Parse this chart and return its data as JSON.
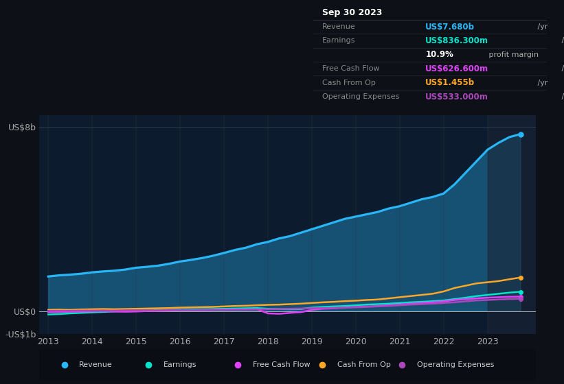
{
  "bg_color": "#0d1117",
  "plot_bg_color": "#0d1b2e",
  "grid_color": "#2a3a4a",
  "title_date": "Sep 30 2023",
  "info_box": {
    "Revenue": {
      "value": "US$7.680b",
      "color": "#4fc3f7"
    },
    "Earnings": {
      "value": "US$836.300m",
      "color": "#00e5cc"
    },
    "profit_margin": {
      "value": "10.9%",
      "color": "#ffffff"
    },
    "Free Cash Flow": {
      "value": "US$626.600m",
      "color": "#e040fb"
    },
    "Cash From Op": {
      "value": "US$1.455b",
      "color": "#ffa726"
    },
    "Operating Expenses": {
      "value": "US$533.000m",
      "color": "#ab47bc"
    }
  },
  "ylim": [
    -1.0,
    8.5
  ],
  "yticks": [
    -1.0,
    0.0,
    8.0
  ],
  "ytick_labels": [
    "-US$1b",
    "US$0",
    "US$8b"
  ],
  "years": [
    2013.0,
    2013.25,
    2013.5,
    2013.75,
    2014.0,
    2014.25,
    2014.5,
    2014.75,
    2015.0,
    2015.25,
    2015.5,
    2015.75,
    2016.0,
    2016.25,
    2016.5,
    2016.75,
    2017.0,
    2017.25,
    2017.5,
    2017.75,
    2018.0,
    2018.25,
    2018.5,
    2018.75,
    2019.0,
    2019.25,
    2019.5,
    2019.75,
    2020.0,
    2020.25,
    2020.5,
    2020.75,
    2021.0,
    2021.25,
    2021.5,
    2021.75,
    2022.0,
    2022.25,
    2022.5,
    2022.75,
    2023.0,
    2023.25,
    2023.5,
    2023.75
  ],
  "revenue": [
    1.5,
    1.55,
    1.58,
    1.62,
    1.68,
    1.72,
    1.75,
    1.8,
    1.88,
    1.92,
    1.97,
    2.05,
    2.15,
    2.22,
    2.3,
    2.4,
    2.52,
    2.65,
    2.75,
    2.9,
    3.0,
    3.15,
    3.25,
    3.4,
    3.55,
    3.7,
    3.85,
    4.0,
    4.1,
    4.2,
    4.3,
    4.45,
    4.55,
    4.7,
    4.85,
    4.95,
    5.1,
    5.5,
    6.0,
    6.5,
    7.0,
    7.3,
    7.55,
    7.68
  ],
  "earnings": [
    -0.15,
    -0.13,
    -0.1,
    -0.08,
    -0.06,
    -0.04,
    -0.02,
    0.0,
    0.02,
    0.03,
    0.04,
    0.05,
    0.06,
    0.07,
    0.08,
    0.09,
    0.1,
    0.11,
    0.12,
    0.13,
    0.1,
    0.09,
    0.08,
    0.09,
    0.15,
    0.18,
    0.2,
    0.22,
    0.25,
    0.28,
    0.3,
    0.32,
    0.35,
    0.38,
    0.4,
    0.43,
    0.46,
    0.52,
    0.58,
    0.65,
    0.7,
    0.75,
    0.8,
    0.836
  ],
  "free_cash_flow": [
    -0.05,
    -0.04,
    -0.03,
    -0.02,
    -0.01,
    0.0,
    -0.02,
    -0.03,
    -0.02,
    0.0,
    0.01,
    0.02,
    0.03,
    0.04,
    0.04,
    0.05,
    0.06,
    0.07,
    0.07,
    0.08,
    -0.1,
    -0.12,
    -0.08,
    -0.05,
    0.05,
    0.1,
    0.12,
    0.15,
    0.18,
    0.2,
    0.22,
    0.25,
    0.28,
    0.32,
    0.35,
    0.38,
    0.42,
    0.48,
    0.52,
    0.55,
    0.58,
    0.6,
    0.62,
    0.626
  ],
  "cash_from_op": [
    0.05,
    0.06,
    0.05,
    0.07,
    0.08,
    0.09,
    0.08,
    0.09,
    0.1,
    0.11,
    0.12,
    0.13,
    0.15,
    0.16,
    0.17,
    0.18,
    0.2,
    0.22,
    0.23,
    0.25,
    0.27,
    0.28,
    0.3,
    0.32,
    0.35,
    0.38,
    0.4,
    0.43,
    0.45,
    0.48,
    0.5,
    0.55,
    0.6,
    0.65,
    0.7,
    0.75,
    0.85,
    1.0,
    1.1,
    1.2,
    1.25,
    1.3,
    1.38,
    1.455
  ],
  "operating_expenses": [
    0.01,
    0.01,
    0.01,
    0.02,
    0.02,
    0.02,
    0.02,
    0.03,
    0.03,
    0.03,
    0.03,
    0.04,
    0.04,
    0.04,
    0.05,
    0.05,
    0.05,
    0.06,
    0.06,
    0.07,
    0.08,
    0.09,
    0.1,
    0.11,
    0.12,
    0.13,
    0.14,
    0.15,
    0.16,
    0.18,
    0.2,
    0.22,
    0.25,
    0.28,
    0.3,
    0.32,
    0.35,
    0.38,
    0.42,
    0.46,
    0.48,
    0.5,
    0.52,
    0.533
  ],
  "revenue_color": "#29b6f6",
  "earnings_color": "#00e5cc",
  "fcf_color": "#e040fb",
  "cfop_color": "#ffa726",
  "opex_color": "#ab47bc",
  "revenue_fill_alpha": 0.35,
  "line_width": 1.8,
  "xticks": [
    2013,
    2014,
    2015,
    2016,
    2017,
    2018,
    2019,
    2020,
    2021,
    2022,
    2023
  ],
  "xlim": [
    2012.8,
    2024.1
  ],
  "legend_labels": [
    "Revenue",
    "Earnings",
    "Free Cash Flow",
    "Cash From Op",
    "Operating Expenses"
  ]
}
